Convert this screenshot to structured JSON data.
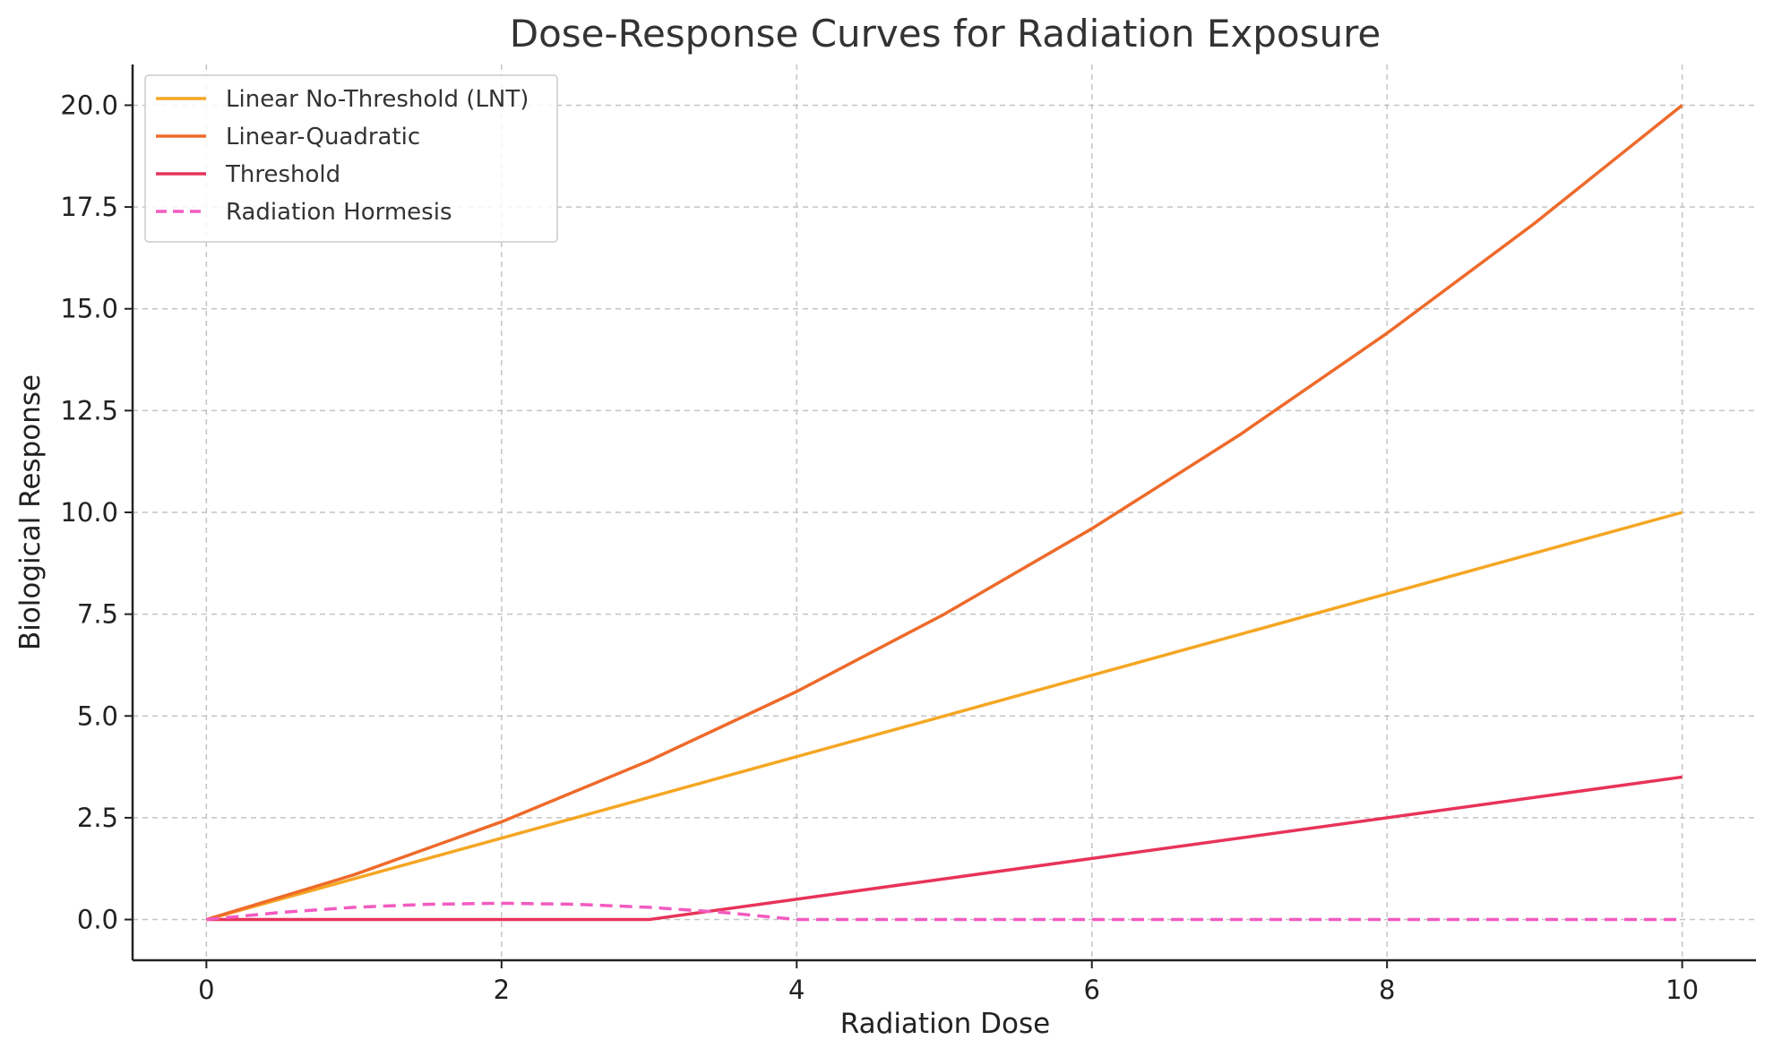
{
  "chart_data": {
    "type": "line",
    "title": "Dose-Response Curves for Radiation Exposure",
    "xlabel": "Radiation Dose",
    "ylabel": "Biological Response",
    "xlim": [
      -0.5,
      10.5
    ],
    "ylim": [
      -1.0,
      21.0
    ],
    "xticks": [
      0,
      2,
      4,
      6,
      8,
      10
    ],
    "yticks": [
      0.0,
      2.5,
      5.0,
      7.5,
      10.0,
      12.5,
      15.0,
      17.5,
      20.0
    ],
    "xtick_labels": [
      "0",
      "2",
      "4",
      "6",
      "8",
      "10"
    ],
    "ytick_labels": [
      "0.0",
      "2.5",
      "5.0",
      "7.5",
      "10.0",
      "12.5",
      "15.0",
      "17.5",
      "20.0"
    ],
    "grid": true,
    "legend_position": "upper-left",
    "series": [
      {
        "name": "Linear No-Threshold (LNT)",
        "color": "#f5a623",
        "style": "solid",
        "x": [
          0,
          2,
          4,
          6,
          8,
          10
        ],
        "y": [
          0,
          2,
          4,
          6,
          8,
          10
        ]
      },
      {
        "name": "Linear-Quadratic",
        "color": "#ee6a2a",
        "style": "solid",
        "x": [
          0,
          1,
          2,
          3,
          4,
          5,
          6,
          7,
          8,
          9,
          10
        ],
        "y": [
          0,
          1.1,
          2.4,
          3.9,
          5.6,
          7.5,
          9.6,
          11.9,
          14.4,
          17.1,
          20.0
        ]
      },
      {
        "name": "Threshold",
        "color": "#e8335a",
        "style": "solid",
        "x": [
          0,
          3,
          10
        ],
        "y": [
          0,
          0,
          3.5
        ]
      },
      {
        "name": "Radiation Hormesis",
        "color": "#f25bc0",
        "style": "dashed",
        "x": [
          0,
          0.5,
          1,
          1.5,
          2,
          2.5,
          3,
          3.5,
          4,
          5,
          6,
          7,
          8,
          9,
          10
        ],
        "y": [
          0,
          0.175,
          0.3,
          0.375,
          0.4,
          0.375,
          0.3,
          0.175,
          0,
          0,
          0,
          0,
          0,
          0,
          0
        ]
      }
    ]
  }
}
